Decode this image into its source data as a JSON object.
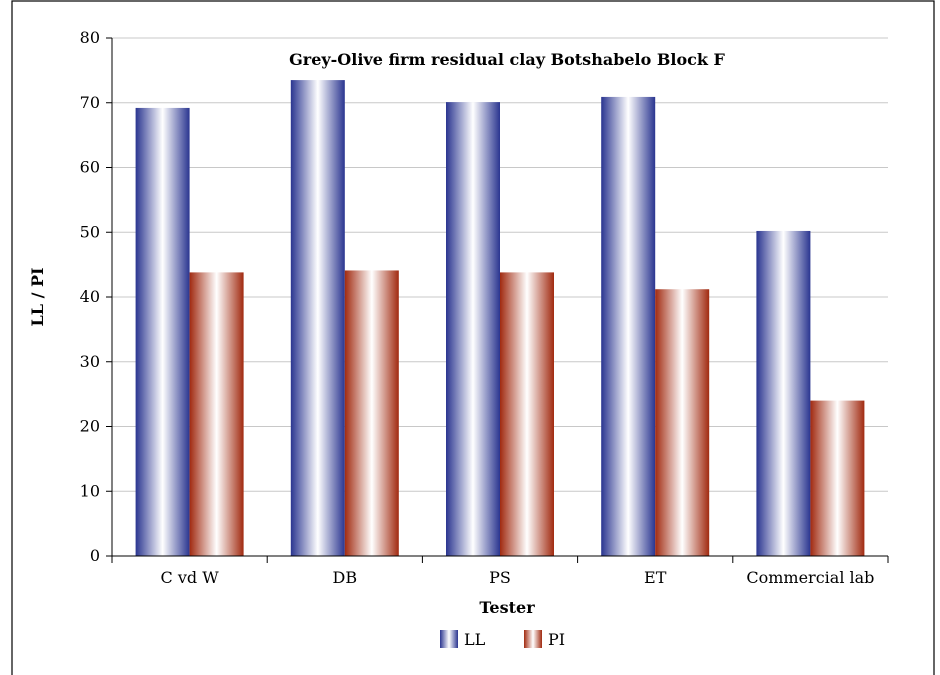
{
  "chart_data": {
    "type": "bar",
    "title": "Grey-Olive firm residual clay Botshabelo Block F",
    "xlabel": "Tester",
    "ylabel": "LL / PI",
    "categories": [
      "C vd W",
      "DB",
      "PS",
      "ET",
      "Commercial lab"
    ],
    "series": [
      {
        "name": "LL",
        "values": [
          69.2,
          73.5,
          70.1,
          70.9,
          50.2
        ]
      },
      {
        "name": "PI",
        "values": [
          43.8,
          44.1,
          43.8,
          41.2,
          24.0
        ]
      }
    ],
    "ylim": [
      0,
      80
    ],
    "yticks": [
      0,
      10,
      20,
      30,
      40,
      50,
      60,
      70,
      80
    ],
    "grid": true,
    "legend_position": "bottom-center",
    "colors": {
      "LL": {
        "dark": "#2a3590",
        "light": "#ffffff"
      },
      "PI": {
        "dark": "#a12a10",
        "light": "#ffffff"
      },
      "grid": "#c8c8c8"
    }
  }
}
